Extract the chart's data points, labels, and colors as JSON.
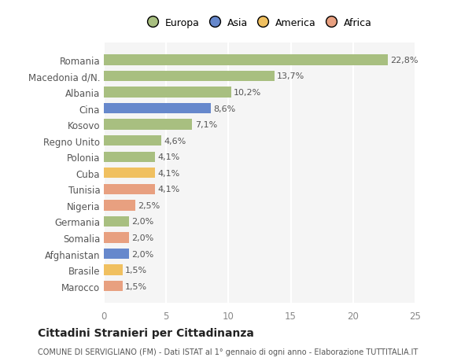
{
  "categories": [
    "Marocco",
    "Brasile",
    "Afghanistan",
    "Somalia",
    "Germania",
    "Nigeria",
    "Tunisia",
    "Cuba",
    "Polonia",
    "Regno Unito",
    "Kosovo",
    "Cina",
    "Albania",
    "Macedonia d/N.",
    "Romania"
  ],
  "values": [
    1.5,
    1.5,
    2.0,
    2.0,
    2.0,
    2.5,
    4.1,
    4.1,
    4.1,
    4.6,
    7.1,
    8.6,
    10.2,
    13.7,
    22.8
  ],
  "labels": [
    "1,5%",
    "1,5%",
    "2,0%",
    "2,0%",
    "2,0%",
    "2,5%",
    "4,1%",
    "4,1%",
    "4,1%",
    "4,6%",
    "7,1%",
    "8,6%",
    "10,2%",
    "13,7%",
    "22,8%"
  ],
  "colors": [
    "#e8a080",
    "#f0c060",
    "#6688cc",
    "#e8a080",
    "#a8bf80",
    "#e8a080",
    "#e8a080",
    "#f0c060",
    "#a8bf80",
    "#a8bf80",
    "#a8bf80",
    "#6688cc",
    "#a8bf80",
    "#a8bf80",
    "#a8bf80"
  ],
  "legend_names": [
    "Europa",
    "Asia",
    "America",
    "Africa"
  ],
  "legend_colors": [
    "#a8bf80",
    "#6688cc",
    "#f0c060",
    "#e8a080"
  ],
  "title": "Cittadini Stranieri per Cittadinanza",
  "subtitle": "COMUNE DI SERVIGLIANO (FM) - Dati ISTAT al 1° gennaio di ogni anno - Elaborazione TUTTITALIA.IT",
  "xlim": [
    0,
    25
  ],
  "xticks": [
    0,
    5,
    10,
    15,
    20,
    25
  ],
  "background_color": "#ffffff",
  "bar_background": "#f5f5f5",
  "grid_color": "#ffffff"
}
